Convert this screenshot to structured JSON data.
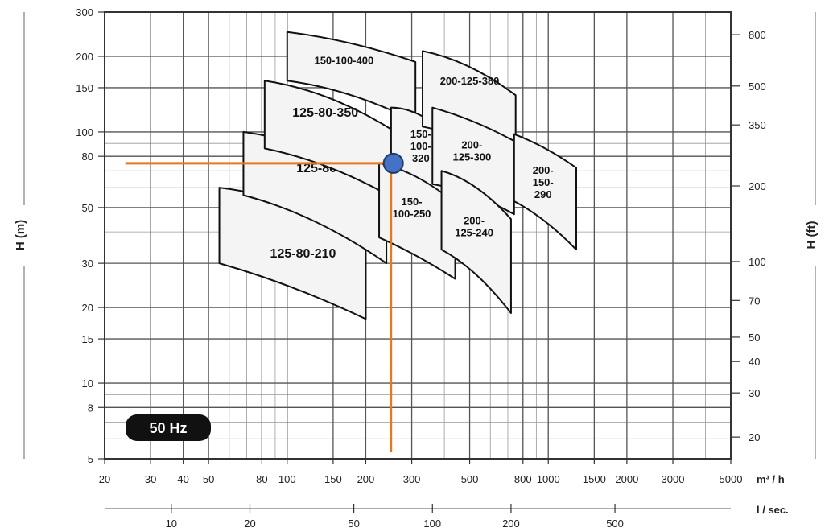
{
  "chart_data": {
    "type": "scatter",
    "title": "",
    "x_axis": {
      "label": "m³ / h",
      "scale": "log",
      "range": [
        20,
        5000
      ],
      "ticks": [
        20,
        30,
        40,
        50,
        80,
        100,
        150,
        200,
        300,
        500,
        800,
        1000,
        1500,
        2000,
        3000,
        5000
      ],
      "tick_labels": [
        "20",
        "30",
        "40",
        "50",
        "80",
        "100",
        "150",
        "200",
        "300",
        "500",
        "800",
        "1000",
        "1500",
        "2000",
        "3000",
        "5000"
      ]
    },
    "secondary_x_axis": {
      "label": "l / sec.",
      "ticks": [
        10,
        20,
        50,
        100,
        200,
        500
      ],
      "tick_labels": [
        "10",
        "20",
        "50",
        "100",
        "200",
        "500"
      ]
    },
    "y_axis_left": {
      "label": "H (m)",
      "scale": "log",
      "range": [
        5,
        300
      ],
      "ticks": [
        5,
        8,
        10,
        15,
        20,
        30,
        50,
        80,
        100,
        150,
        200,
        300
      ],
      "tick_labels": [
        "5",
        "8",
        "10",
        "15",
        "20",
        "30",
        "50",
        "80",
        "100",
        "150",
        "200",
        "300"
      ]
    },
    "y_axis_right": {
      "label": "H (ft)",
      "ticks": [
        20,
        30,
        40,
        50,
        70,
        100,
        200,
        350,
        500,
        800
      ],
      "tick_labels": [
        "20",
        "30",
        "40",
        "50",
        "70",
        "100",
        "200",
        "350",
        "500",
        "800"
      ]
    },
    "grid": true,
    "badge": "50 Hz",
    "pumps": [
      {
        "label": "125-80-210",
        "label_lines": [
          "125-80-210"
        ],
        "q_range": [
          55,
          200
        ],
        "h_left": [
          30,
          60
        ],
        "h_right": [
          18,
          40
        ],
        "h_mid": [
          24,
          52
        ],
        "label_at": [
          115,
          33
        ],
        "font": 16
      },
      {
        "label": "125-80-270",
        "label_lines": [
          "125-80-270"
        ],
        "q_range": [
          68,
          240
        ],
        "h_left": [
          56,
          100
        ],
        "h_right": [
          30,
          66
        ],
        "h_mid": [
          44,
          86
        ],
        "label_at": [
          145,
          72
        ],
        "font": 16
      },
      {
        "label": "125-80-350",
        "label_lines": [
          "125-80-350"
        ],
        "q_range": [
          82,
          260
        ],
        "h_left": [
          86,
          160
        ],
        "h_right": [
          54,
          100
        ],
        "h_mid": [
          72,
          136
        ],
        "label_at": [
          140,
          120
        ],
        "font": 16
      },
      {
        "label": "150-100-400",
        "label_lines": [
          "150-100-400"
        ],
        "q_range": [
          100,
          310
        ],
        "h_left": [
          160,
          250
        ],
        "h_right": [
          110,
          190
        ],
        "h_mid": [
          140,
          225
        ],
        "label_at": [
          165,
          193
        ],
        "font": 13
      },
      {
        "label": "150-100-320",
        "label_lines": [
          "150-",
          "100-",
          "320"
        ],
        "q_range": [
          250,
          400
        ],
        "h_left": [
          65,
          125
        ],
        "h_right": [
          52,
          100
        ],
        "h_mid": [
          60,
          118
        ],
        "label_at": [
          325,
          88
        ],
        "font": 13
      },
      {
        "label": "150-100-250",
        "label_lines": [
          "150-",
          "100-250"
        ],
        "q_range": [
          225,
          440
        ],
        "h_left": [
          38,
          75
        ],
        "h_right": [
          26,
          52
        ],
        "h_mid": [
          32,
          66
        ],
        "label_at": [
          300,
          50
        ],
        "font": 13
      },
      {
        "label": "200-125-380",
        "label_lines": [
          "200-125-380"
        ],
        "q_range": [
          330,
          750
        ],
        "h_left": [
          105,
          210
        ],
        "h_right": [
          80,
          140
        ],
        "h_mid": [
          94,
          182
        ],
        "label_at": [
          500,
          160
        ],
        "font": 13
      },
      {
        "label": "200-125-300",
        "label_lines": [
          "200-",
          "125-300"
        ],
        "q_range": [
          360,
          740
        ],
        "h_left": [
          62,
          125
        ],
        "h_right": [
          47,
          92
        ],
        "h_mid": [
          56,
          110
        ],
        "label_at": [
          510,
          84
        ],
        "font": 13
      },
      {
        "label": "200-125-240",
        "label_lines": [
          "200-",
          "125-240"
        ],
        "q_range": [
          390,
          720
        ],
        "h_left": [
          34,
          70
        ],
        "h_right": [
          19,
          45
        ],
        "h_mid": [
          27,
          60
        ],
        "label_at": [
          520,
          42
        ],
        "font": 13
      },
      {
        "label": "200-150-290",
        "label_lines": [
          "200-",
          "150-",
          "290"
        ],
        "q_range": [
          740,
          1280
        ],
        "h_left": [
          53,
          98
        ],
        "h_right": [
          34,
          72
        ],
        "h_mid": [
          44,
          86
        ],
        "label_at": [
          955,
          63
        ],
        "font": 13
      }
    ],
    "operating_point": {
      "q": 255,
      "h": 75
    },
    "guide_lines": {
      "x_start": 24,
      "y_end": 5.3,
      "color": "#e87722"
    },
    "point_color": "#4472c4"
  }
}
